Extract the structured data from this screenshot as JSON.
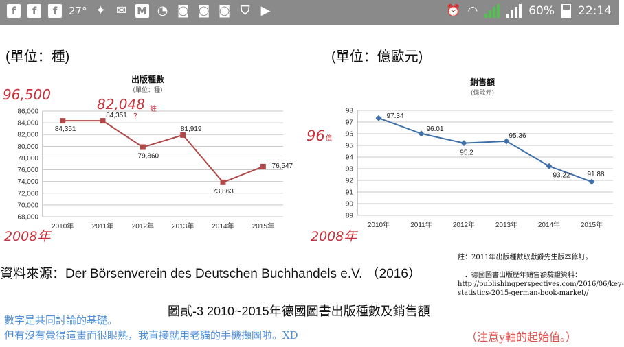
{
  "status_bar": {
    "temperature": "27°",
    "battery": "60%",
    "time": "22:14",
    "icons": [
      "facebook-icon",
      "facebook-icon",
      "facebook-icon",
      "twitter-icon",
      "mail-icon",
      "gmail-icon",
      "messenger-icon",
      "instagram-icon",
      "instagram-icon",
      "instagram-icon",
      "shield-icon",
      "play-store-icon"
    ]
  },
  "left_panel": {
    "unit": "(單位：種)"
  },
  "right_panel": {
    "unit": "(單位：億歐元)"
  },
  "chart_data": [
    {
      "type": "line",
      "title": "出版種數",
      "subtitle": "(單位：種)",
      "categories": [
        "2010年",
        "2011年",
        "2012年",
        "2013年",
        "2014年",
        "2015年"
      ],
      "values": [
        84351,
        84351,
        79860,
        81919,
        73863,
        76547
      ],
      "data_labels": [
        "84,351",
        "84,351",
        "79,860",
        "81,919",
        "73,863",
        "76,547"
      ],
      "ylim": [
        68000,
        86000
      ],
      "yticks": [
        "68,000",
        "70,000",
        "72,000",
        "74,000",
        "76,000",
        "78,000",
        "80,000",
        "82,000",
        "84,000",
        "86,000"
      ],
      "color": "#b04a4a",
      "marker": "square",
      "grid": true
    },
    {
      "type": "line",
      "title": "銷售額",
      "subtitle": "(億歐元)",
      "categories": [
        "2010年",
        "2011年",
        "2012年",
        "2013年",
        "2014年",
        "2015年"
      ],
      "values": [
        97.34,
        96.01,
        95.2,
        95.36,
        93.22,
        91.88
      ],
      "data_labels": [
        "97.34",
        "96.01",
        "95.2",
        "95.36",
        "93.22",
        "91.88"
      ],
      "ylim": [
        89,
        98
      ],
      "yticks": [
        "89",
        "90",
        "91",
        "92",
        "93",
        "94",
        "95",
        "96",
        "97",
        "98"
      ],
      "color": "#3f6fa8",
      "marker": "diamond",
      "grid": true
    }
  ],
  "annotations": {
    "hand_96500": "96,500",
    "hand_82048": "82,048",
    "hand_82048_note": "註",
    "qmark": "?",
    "hand_2008_left": "2008年",
    "hand_96": "96",
    "hand_96_unit": "億",
    "hand_2008_right": "2008年"
  },
  "notes": {
    "note1": "註：2011年出版種數取獻爵先生版本修訂。",
    "note2": "．德國圖書出版歷年銷售額驗證資料：",
    "note3": "http://publishingperspectives.com/2016/06/key-",
    "note4": "statistics-2015-german-book-market//"
  },
  "source": "資料來源：Der Börsenverein des Deutschen Buchhandels e.V. （2016）",
  "caption": "圖貳-3 2010~2015年德國圖書出版種數及銷售額",
  "comments": {
    "line1": "數字是共同討論的基礎。",
    "line2": "但有沒有覺得這畫面很眼熟，我直接就用老貓的手機擷圖啦。XD",
    "line3": "（注意y軸的起始值。）"
  }
}
